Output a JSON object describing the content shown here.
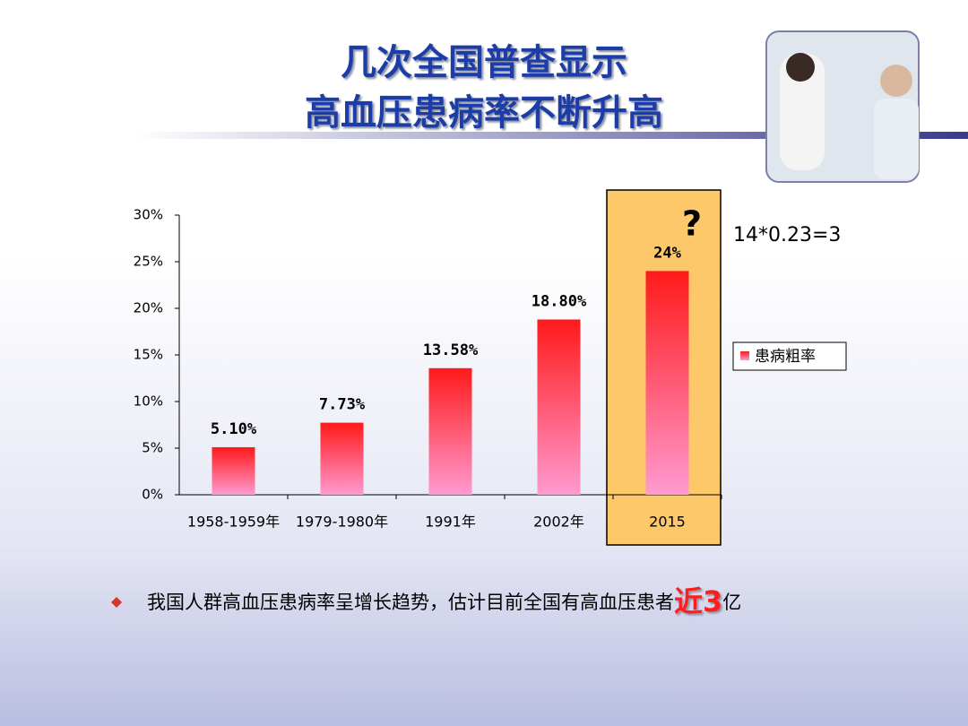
{
  "chart_data": {
    "type": "bar",
    "title": "几次全国普查显示",
    "subtitle": "高血压患病率不断升高",
    "categories": [
      "1958-1959年",
      "1979-1980年",
      "1991年",
      "2002年",
      "2015"
    ],
    "series": [
      {
        "name": "患病粗率",
        "color": "#ff1a1a",
        "values": [
          5.1,
          7.73,
          13.58,
          18.8,
          24
        ],
        "value_labels": [
          "5.10%",
          "7.73%",
          "13.58%",
          "18.80%",
          "24%"
        ]
      }
    ],
    "ylim": [
      0,
      30
    ],
    "yticks": [
      {
        "value": 0,
        "label": "0%"
      },
      {
        "value": 5,
        "label": "5%"
      },
      {
        "value": 10,
        "label": "10%"
      },
      {
        "value": 15,
        "label": "15%"
      },
      {
        "value": 20,
        "label": "20%"
      },
      {
        "value": 25,
        "label": "25%"
      },
      {
        "value": 30,
        "label": "30%"
      }
    ],
    "annotations": [
      "?",
      "14*0.23=3"
    ]
  },
  "bullet": {
    "text": "我国人群高血压患病率呈增长趋势，估计目前全国有高血压患者",
    "highlight": "近3",
    "suffix": "亿"
  }
}
